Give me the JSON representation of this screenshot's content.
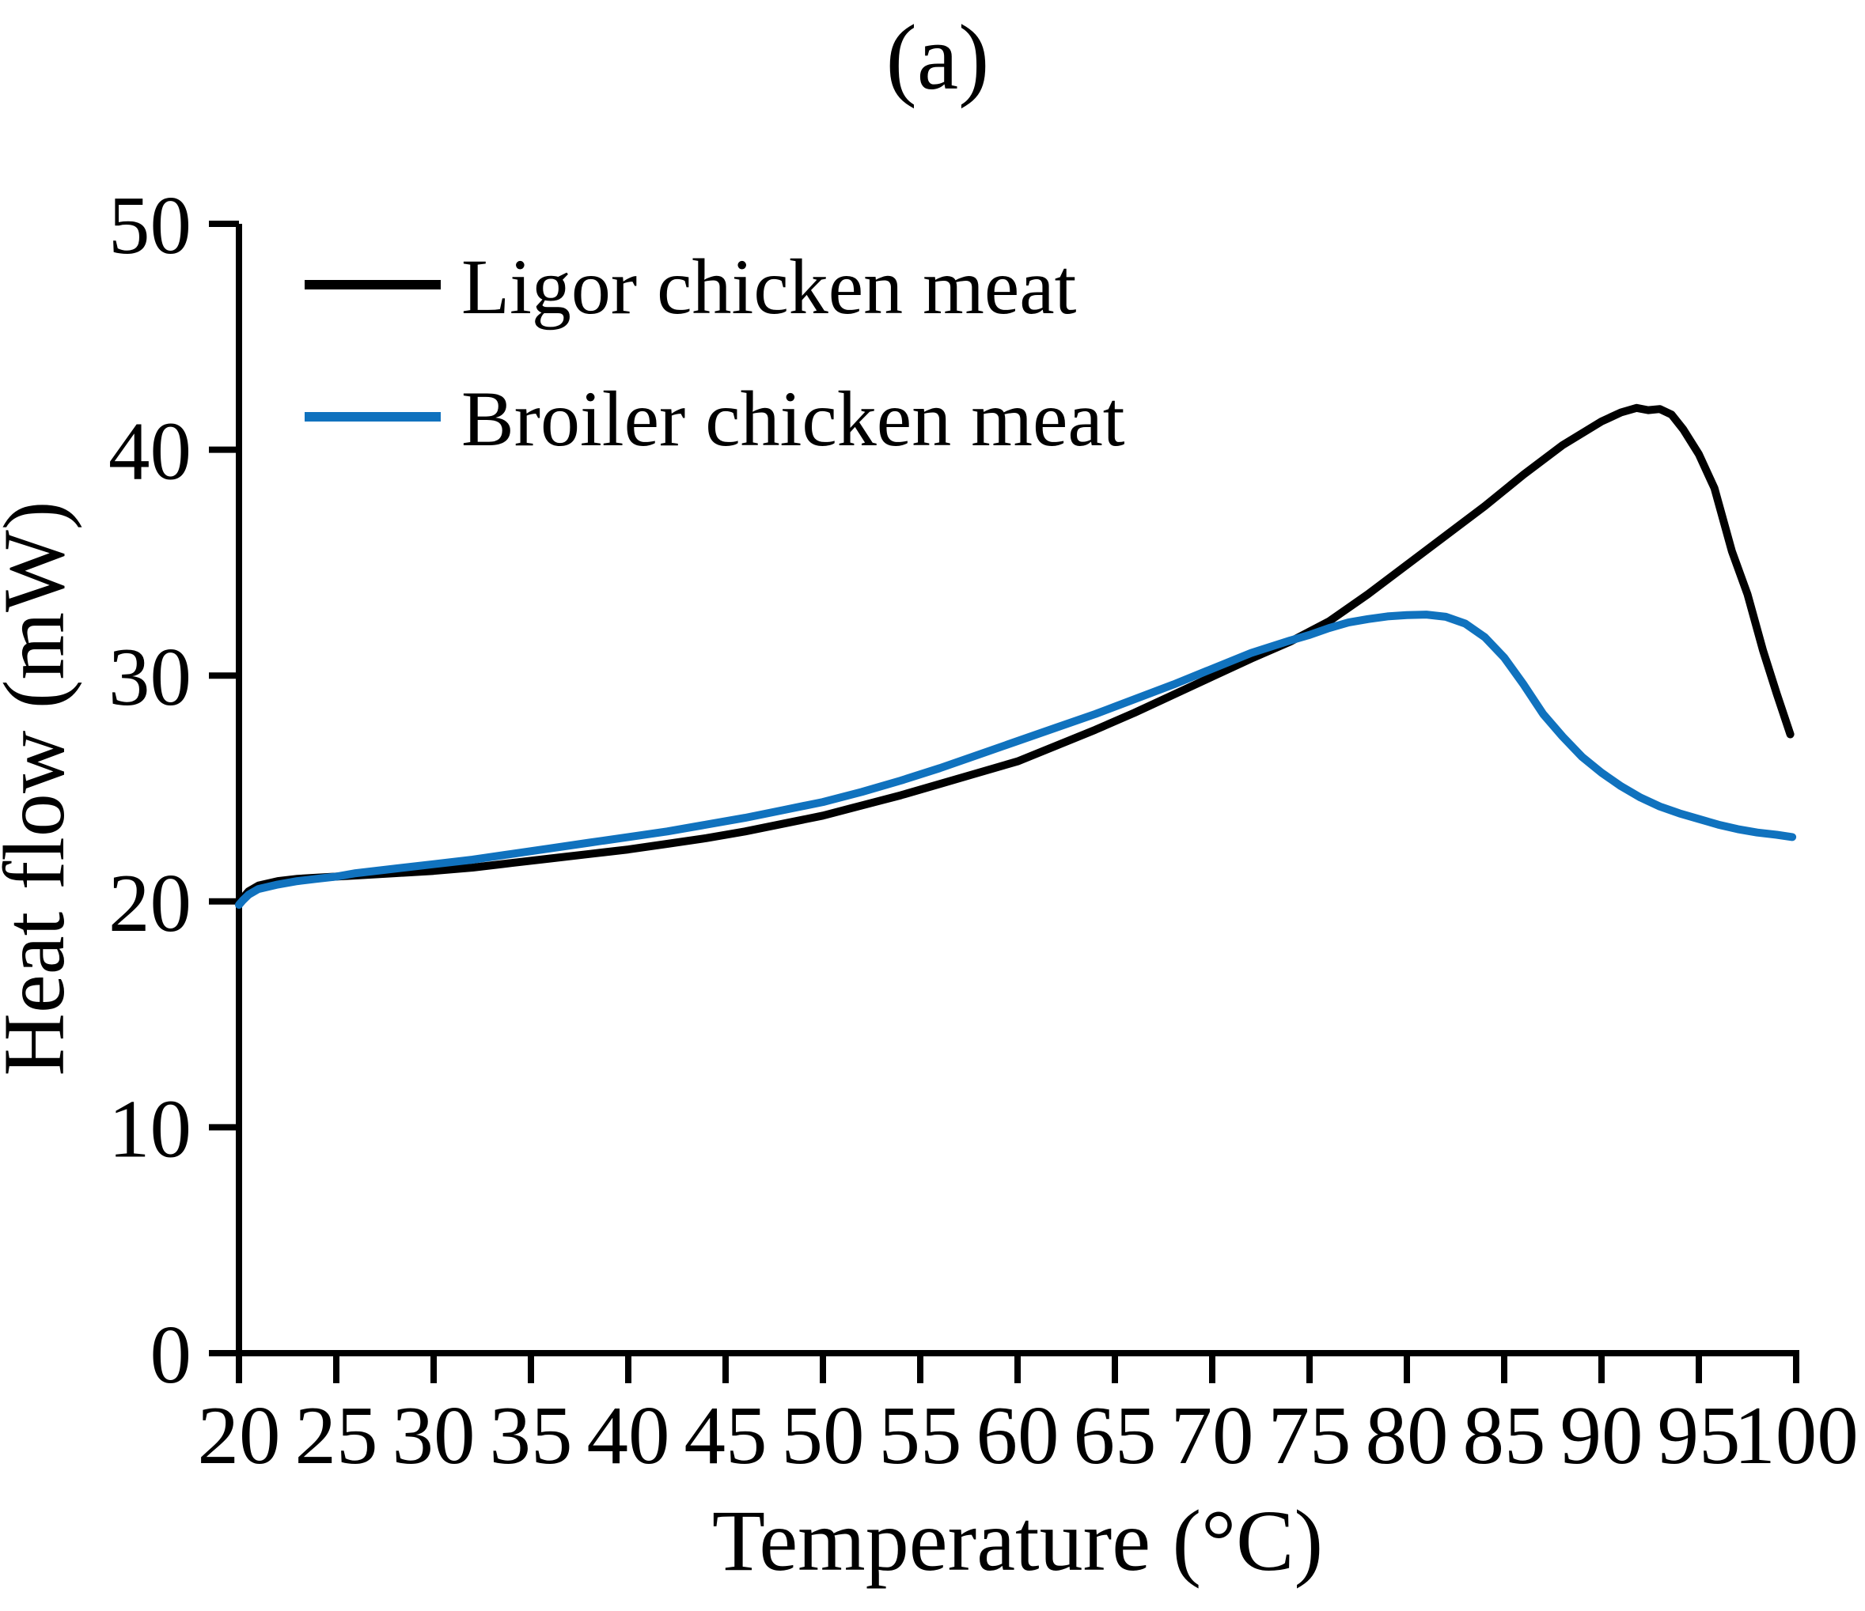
{
  "figure_label": "(a)",
  "axes": {
    "x_title": "Temperature (°C)",
    "y_title": "Heat flow (mW)"
  },
  "legend": {
    "items": [
      {
        "label": "Ligor chicken meat",
        "color": "#000000"
      },
      {
        "label": "Broiler chicken meat",
        "color": "#1072BE"
      }
    ]
  },
  "chart_data": {
    "type": "line",
    "title": "(a)",
    "xlabel": "Temperature (°C)",
    "ylabel": "Heat flow (mW)",
    "xlim": [
      20,
      100
    ],
    "ylim": [
      0,
      50
    ],
    "x_ticks": [
      20,
      25,
      30,
      35,
      40,
      45,
      50,
      55,
      60,
      65,
      70,
      75,
      80,
      85,
      90,
      95,
      100
    ],
    "y_ticks": [
      0,
      10,
      20,
      30,
      40,
      50
    ],
    "grid": false,
    "legend_position": "inside top-left",
    "series": [
      {
        "name": "Ligor chicken meat",
        "color": "#000000",
        "points": [
          [
            20,
            19.9
          ],
          [
            20.2,
            20.15
          ],
          [
            20.5,
            20.45
          ],
          [
            21,
            20.7
          ],
          [
            22,
            20.9
          ],
          [
            23,
            21.0
          ],
          [
            24,
            21.05
          ],
          [
            25,
            21.1
          ],
          [
            26,
            21.15
          ],
          [
            28,
            21.25
          ],
          [
            30,
            21.35
          ],
          [
            32,
            21.5
          ],
          [
            34,
            21.7
          ],
          [
            36,
            21.9
          ],
          [
            38,
            22.1
          ],
          [
            40,
            22.3
          ],
          [
            42,
            22.55
          ],
          [
            44,
            22.8
          ],
          [
            46,
            23.1
          ],
          [
            48,
            23.45
          ],
          [
            50,
            23.8
          ],
          [
            52,
            24.25
          ],
          [
            54,
            24.7
          ],
          [
            56,
            25.2
          ],
          [
            58,
            25.7
          ],
          [
            60,
            26.2
          ],
          [
            62,
            26.9
          ],
          [
            64,
            27.6
          ],
          [
            66,
            28.35
          ],
          [
            68,
            29.15
          ],
          [
            70,
            29.95
          ],
          [
            72,
            30.75
          ],
          [
            74,
            31.5
          ],
          [
            76,
            32.4
          ],
          [
            78,
            33.6
          ],
          [
            80,
            34.9
          ],
          [
            82,
            36.2
          ],
          [
            84,
            37.5
          ],
          [
            86,
            38.9
          ],
          [
            88,
            40.2
          ],
          [
            90,
            41.25
          ],
          [
            91,
            41.65
          ],
          [
            91.8,
            41.85
          ],
          [
            92.4,
            41.75
          ],
          [
            93,
            41.8
          ],
          [
            93.6,
            41.55
          ],
          [
            94.2,
            40.9
          ],
          [
            95,
            39.8
          ],
          [
            95.8,
            38.3
          ],
          [
            96.7,
            35.5
          ],
          [
            97.5,
            33.6
          ],
          [
            98.3,
            31.1
          ],
          [
            99,
            29.2
          ],
          [
            99.7,
            27.4
          ]
        ]
      },
      {
        "name": "Broiler chicken meat",
        "color": "#1072BE",
        "points": [
          [
            20,
            19.85
          ],
          [
            20.2,
            20.05
          ],
          [
            20.5,
            20.3
          ],
          [
            21,
            20.55
          ],
          [
            22,
            20.75
          ],
          [
            23,
            20.9
          ],
          [
            24,
            21.0
          ],
          [
            25,
            21.1
          ],
          [
            26,
            21.25
          ],
          [
            28,
            21.45
          ],
          [
            30,
            21.65
          ],
          [
            32,
            21.85
          ],
          [
            34,
            22.1
          ],
          [
            36,
            22.35
          ],
          [
            38,
            22.6
          ],
          [
            40,
            22.85
          ],
          [
            42,
            23.1
          ],
          [
            44,
            23.4
          ],
          [
            46,
            23.7
          ],
          [
            48,
            24.05
          ],
          [
            50,
            24.4
          ],
          [
            52,
            24.85
          ],
          [
            54,
            25.35
          ],
          [
            56,
            25.9
          ],
          [
            58,
            26.5
          ],
          [
            60,
            27.1
          ],
          [
            62,
            27.7
          ],
          [
            64,
            28.3
          ],
          [
            66,
            28.95
          ],
          [
            68,
            29.6
          ],
          [
            70,
            30.3
          ],
          [
            72,
            31.0
          ],
          [
            74,
            31.55
          ],
          [
            75,
            31.8
          ],
          [
            76,
            32.1
          ],
          [
            77,
            32.35
          ],
          [
            78,
            32.5
          ],
          [
            79,
            32.62
          ],
          [
            80,
            32.68
          ],
          [
            81,
            32.7
          ],
          [
            82,
            32.6
          ],
          [
            83,
            32.3
          ],
          [
            84,
            31.7
          ],
          [
            85,
            30.8
          ],
          [
            86,
            29.6
          ],
          [
            87,
            28.3
          ],
          [
            88,
            27.3
          ],
          [
            89,
            26.4
          ],
          [
            90,
            25.7
          ],
          [
            91,
            25.1
          ],
          [
            92,
            24.6
          ],
          [
            93,
            24.2
          ],
          [
            94,
            23.9
          ],
          [
            95,
            23.65
          ],
          [
            96,
            23.4
          ],
          [
            97,
            23.2
          ],
          [
            98,
            23.05
          ],
          [
            99,
            22.95
          ],
          [
            99.8,
            22.85
          ]
        ]
      }
    ]
  }
}
